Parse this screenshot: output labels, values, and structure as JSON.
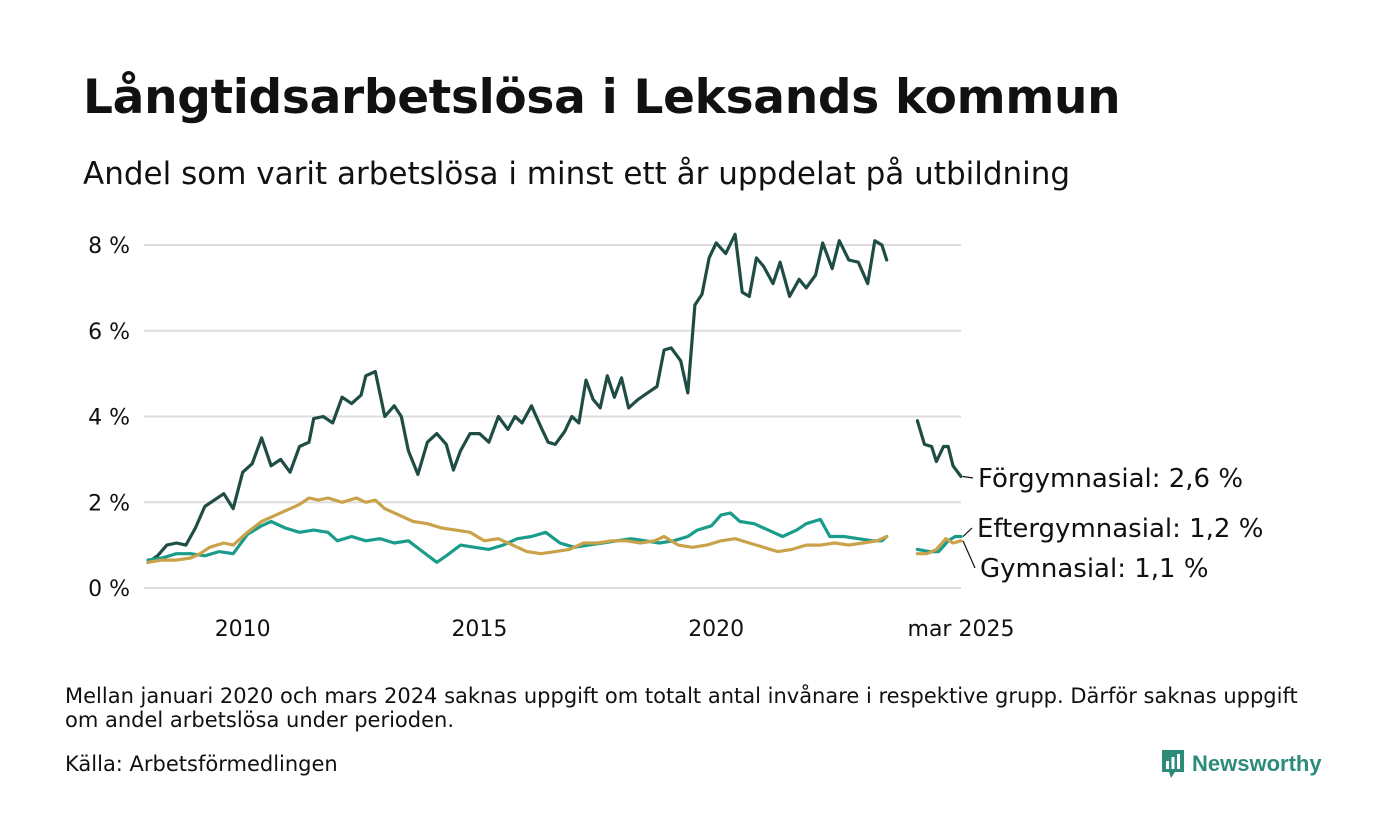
{
  "title": "Långtidsarbetslösa i Leksands kommun",
  "subtitle": "Andel som varit arbetslösa i minst ett år uppdelat på utbildning",
  "note": "Mellan januari 2020 och mars 2024 saknas uppgift om totalt antal invånare i respektive grupp. Därför saknas uppgift om andel arbetslösa under perioden.",
  "source": "Källa: Arbetsförmedlingen",
  "brand": "Newsworthy",
  "colors": {
    "forgymnasial": "#1f4d45",
    "eftergymnasial": "#1a9c8a",
    "gymnasial": "#c9a24a",
    "grid": "#dddddd",
    "brand": "#2e8b7a"
  },
  "chart_data": {
    "type": "line",
    "xlabel": "",
    "ylabel": "",
    "x_ticks": [
      "2010",
      "2015",
      "2020",
      "mar 2025"
    ],
    "x_tick_values": [
      2010.0,
      2015.0,
      2020.0,
      2025.17
    ],
    "y_ticks": [
      "0 %",
      "2 %",
      "4 %",
      "6 %",
      "8 %"
    ],
    "y_tick_values": [
      0,
      2,
      4,
      6,
      8
    ],
    "xlim": [
      2008.0,
      2025.17
    ],
    "ylim": [
      0,
      8.5
    ],
    "grid": true,
    "series": [
      {
        "key": "forgymnasial",
        "end_label": "Förgymnasial: 2,6 %",
        "segments": [
          [
            [
              2008.0,
              0.6
            ],
            [
              2008.2,
              0.75
            ],
            [
              2008.4,
              1.0
            ],
            [
              2008.6,
              1.05
            ],
            [
              2008.8,
              1.0
            ],
            [
              2009.0,
              1.4
            ],
            [
              2009.2,
              1.9
            ],
            [
              2009.4,
              2.05
            ],
            [
              2009.6,
              2.2
            ],
            [
              2009.8,
              1.85
            ],
            [
              2010.0,
              2.7
            ],
            [
              2010.2,
              2.9
            ],
            [
              2010.4,
              3.5
            ],
            [
              2010.6,
              2.85
            ],
            [
              2010.8,
              3.0
            ],
            [
              2011.0,
              2.7
            ],
            [
              2011.2,
              3.3
            ],
            [
              2011.4,
              3.4
            ],
            [
              2011.5,
              3.95
            ],
            [
              2011.7,
              4.0
            ],
            [
              2011.9,
              3.85
            ],
            [
              2012.1,
              4.45
            ],
            [
              2012.3,
              4.3
            ],
            [
              2012.5,
              4.5
            ],
            [
              2012.6,
              4.95
            ],
            [
              2012.8,
              5.05
            ],
            [
              2013.0,
              4.0
            ],
            [
              2013.2,
              4.25
            ],
            [
              2013.35,
              4.0
            ],
            [
              2013.5,
              3.2
            ],
            [
              2013.7,
              2.65
            ],
            [
              2013.9,
              3.4
            ],
            [
              2014.1,
              3.6
            ],
            [
              2014.3,
              3.35
            ],
            [
              2014.45,
              2.75
            ],
            [
              2014.6,
              3.2
            ],
            [
              2014.8,
              3.6
            ],
            [
              2015.0,
              3.6
            ],
            [
              2015.2,
              3.4
            ],
            [
              2015.4,
              4.0
            ],
            [
              2015.6,
              3.7
            ],
            [
              2015.75,
              4.0
            ],
            [
              2015.9,
              3.85
            ],
            [
              2016.1,
              4.25
            ],
            [
              2016.3,
              3.75
            ],
            [
              2016.45,
              3.4
            ],
            [
              2016.6,
              3.35
            ],
            [
              2016.8,
              3.65
            ],
            [
              2016.95,
              4.0
            ],
            [
              2017.1,
              3.85
            ],
            [
              2017.25,
              4.85
            ],
            [
              2017.4,
              4.4
            ],
            [
              2017.55,
              4.2
            ],
            [
              2017.7,
              4.95
            ],
            [
              2017.85,
              4.45
            ],
            [
              2018.0,
              4.9
            ],
            [
              2018.15,
              4.2
            ],
            [
              2018.35,
              4.4
            ],
            [
              2018.55,
              4.55
            ],
            [
              2018.75,
              4.7
            ],
            [
              2018.9,
              5.55
            ],
            [
              2019.05,
              5.6
            ],
            [
              2019.25,
              5.3
            ],
            [
              2019.4,
              4.55
            ],
            [
              2019.55,
              6.6
            ],
            [
              2019.7,
              6.85
            ],
            [
              2019.85,
              7.7
            ],
            [
              2020.0,
              8.05
            ],
            [
              2020.2,
              7.8
            ],
            [
              2020.4,
              8.25
            ],
            [
              2020.55,
              6.9
            ],
            [
              2020.7,
              6.8
            ],
            [
              2020.85,
              7.7
            ],
            [
              2021.0,
              7.5
            ],
            [
              2021.2,
              7.1
            ],
            [
              2021.35,
              7.6
            ],
            [
              2021.55,
              6.8
            ],
            [
              2021.75,
              7.2
            ],
            [
              2021.9,
              7.0
            ],
            [
              2022.1,
              7.3
            ],
            [
              2022.25,
              8.05
            ],
            [
              2022.45,
              7.45
            ],
            [
              2022.6,
              8.1
            ],
            [
              2022.8,
              7.65
            ],
            [
              2023.0,
              7.6
            ],
            [
              2023.2,
              7.1
            ],
            [
              2023.35,
              8.1
            ],
            [
              2023.5,
              8.0
            ],
            [
              2023.6,
              7.65
            ]
          ],
          [
            [
              2024.25,
              3.9
            ],
            [
              2024.4,
              3.35
            ],
            [
              2024.55,
              3.3
            ],
            [
              2024.65,
              2.95
            ],
            [
              2024.8,
              3.3
            ],
            [
              2024.9,
              3.3
            ],
            [
              2025.0,
              2.85
            ],
            [
              2025.17,
              2.6
            ]
          ]
        ]
      },
      {
        "key": "eftergymnasial",
        "end_label": "Eftergymnasial: 1,2 %",
        "segments": [
          [
            [
              2008.0,
              0.65
            ],
            [
              2008.3,
              0.7
            ],
            [
              2008.6,
              0.8
            ],
            [
              2008.9,
              0.8
            ],
            [
              2009.2,
              0.75
            ],
            [
              2009.5,
              0.85
            ],
            [
              2009.8,
              0.8
            ],
            [
              2010.1,
              1.25
            ],
            [
              2010.4,
              1.45
            ],
            [
              2010.6,
              1.55
            ],
            [
              2010.9,
              1.4
            ],
            [
              2011.2,
              1.3
            ],
            [
              2011.5,
              1.35
            ],
            [
              2011.8,
              1.3
            ],
            [
              2012.0,
              1.1
            ],
            [
              2012.3,
              1.2
            ],
            [
              2012.6,
              1.1
            ],
            [
              2012.9,
              1.15
            ],
            [
              2013.2,
              1.05
            ],
            [
              2013.5,
              1.1
            ],
            [
              2013.8,
              0.85
            ],
            [
              2014.1,
              0.6
            ],
            [
              2014.3,
              0.75
            ],
            [
              2014.6,
              1.0
            ],
            [
              2014.9,
              0.95
            ],
            [
              2015.2,
              0.9
            ],
            [
              2015.5,
              1.0
            ],
            [
              2015.8,
              1.15
            ],
            [
              2016.1,
              1.2
            ],
            [
              2016.4,
              1.3
            ],
            [
              2016.7,
              1.05
            ],
            [
              2017.0,
              0.95
            ],
            [
              2017.3,
              1.0
            ],
            [
              2017.6,
              1.05
            ],
            [
              2017.9,
              1.1
            ],
            [
              2018.2,
              1.15
            ],
            [
              2018.5,
              1.1
            ],
            [
              2018.8,
              1.05
            ],
            [
              2019.1,
              1.1
            ],
            [
              2019.4,
              1.2
            ],
            [
              2019.6,
              1.35
            ],
            [
              2019.9,
              1.45
            ],
            [
              2020.1,
              1.7
            ],
            [
              2020.3,
              1.75
            ],
            [
              2020.5,
              1.55
            ],
            [
              2020.8,
              1.5
            ],
            [
              2021.1,
              1.35
            ],
            [
              2021.4,
              1.2
            ],
            [
              2021.7,
              1.35
            ],
            [
              2021.9,
              1.5
            ],
            [
              2022.2,
              1.6
            ],
            [
              2022.4,
              1.2
            ],
            [
              2022.7,
              1.2
            ],
            [
              2023.0,
              1.15
            ],
            [
              2023.3,
              1.1
            ],
            [
              2023.5,
              1.1
            ],
            [
              2023.6,
              1.2
            ]
          ],
          [
            [
              2024.25,
              0.9
            ],
            [
              2024.5,
              0.85
            ],
            [
              2024.7,
              0.85
            ],
            [
              2024.9,
              1.1
            ],
            [
              2025.05,
              1.2
            ],
            [
              2025.17,
              1.2
            ]
          ]
        ]
      },
      {
        "key": "gymnasial",
        "end_label": "Gymnasial: 1,1 %",
        "segments": [
          [
            [
              2008.0,
              0.6
            ],
            [
              2008.3,
              0.65
            ],
            [
              2008.6,
              0.65
            ],
            [
              2008.9,
              0.7
            ],
            [
              2009.1,
              0.8
            ],
            [
              2009.3,
              0.95
            ],
            [
              2009.6,
              1.05
            ],
            [
              2009.8,
              1.0
            ],
            [
              2010.1,
              1.3
            ],
            [
              2010.4,
              1.55
            ],
            [
              2010.7,
              1.7
            ],
            [
              2011.0,
              1.85
            ],
            [
              2011.2,
              1.95
            ],
            [
              2011.4,
              2.1
            ],
            [
              2011.6,
              2.05
            ],
            [
              2011.8,
              2.1
            ],
            [
              2012.1,
              2.0
            ],
            [
              2012.4,
              2.1
            ],
            [
              2012.6,
              2.0
            ],
            [
              2012.8,
              2.05
            ],
            [
              2013.0,
              1.85
            ],
            [
              2013.3,
              1.7
            ],
            [
              2013.6,
              1.55
            ],
            [
              2013.9,
              1.5
            ],
            [
              2014.2,
              1.4
            ],
            [
              2014.5,
              1.35
            ],
            [
              2014.8,
              1.3
            ],
            [
              2015.1,
              1.1
            ],
            [
              2015.4,
              1.15
            ],
            [
              2015.7,
              1.0
            ],
            [
              2016.0,
              0.85
            ],
            [
              2016.3,
              0.8
            ],
            [
              2016.6,
              0.85
            ],
            [
              2016.9,
              0.9
            ],
            [
              2017.2,
              1.05
            ],
            [
              2017.5,
              1.05
            ],
            [
              2017.8,
              1.1
            ],
            [
              2018.1,
              1.1
            ],
            [
              2018.4,
              1.05
            ],
            [
              2018.7,
              1.1
            ],
            [
              2018.9,
              1.2
            ],
            [
              2019.2,
              1.0
            ],
            [
              2019.5,
              0.95
            ],
            [
              2019.8,
              1.0
            ],
            [
              2020.1,
              1.1
            ],
            [
              2020.4,
              1.15
            ],
            [
              2020.7,
              1.05
            ],
            [
              2021.0,
              0.95
            ],
            [
              2021.3,
              0.85
            ],
            [
              2021.6,
              0.9
            ],
            [
              2021.9,
              1.0
            ],
            [
              2022.2,
              1.0
            ],
            [
              2022.5,
              1.05
            ],
            [
              2022.8,
              1.0
            ],
            [
              2023.1,
              1.05
            ],
            [
              2023.4,
              1.1
            ],
            [
              2023.6,
              1.2
            ]
          ],
          [
            [
              2024.25,
              0.8
            ],
            [
              2024.45,
              0.8
            ],
            [
              2024.65,
              0.9
            ],
            [
              2024.85,
              1.15
            ],
            [
              2025.0,
              1.05
            ],
            [
              2025.17,
              1.1
            ]
          ]
        ]
      }
    ]
  }
}
